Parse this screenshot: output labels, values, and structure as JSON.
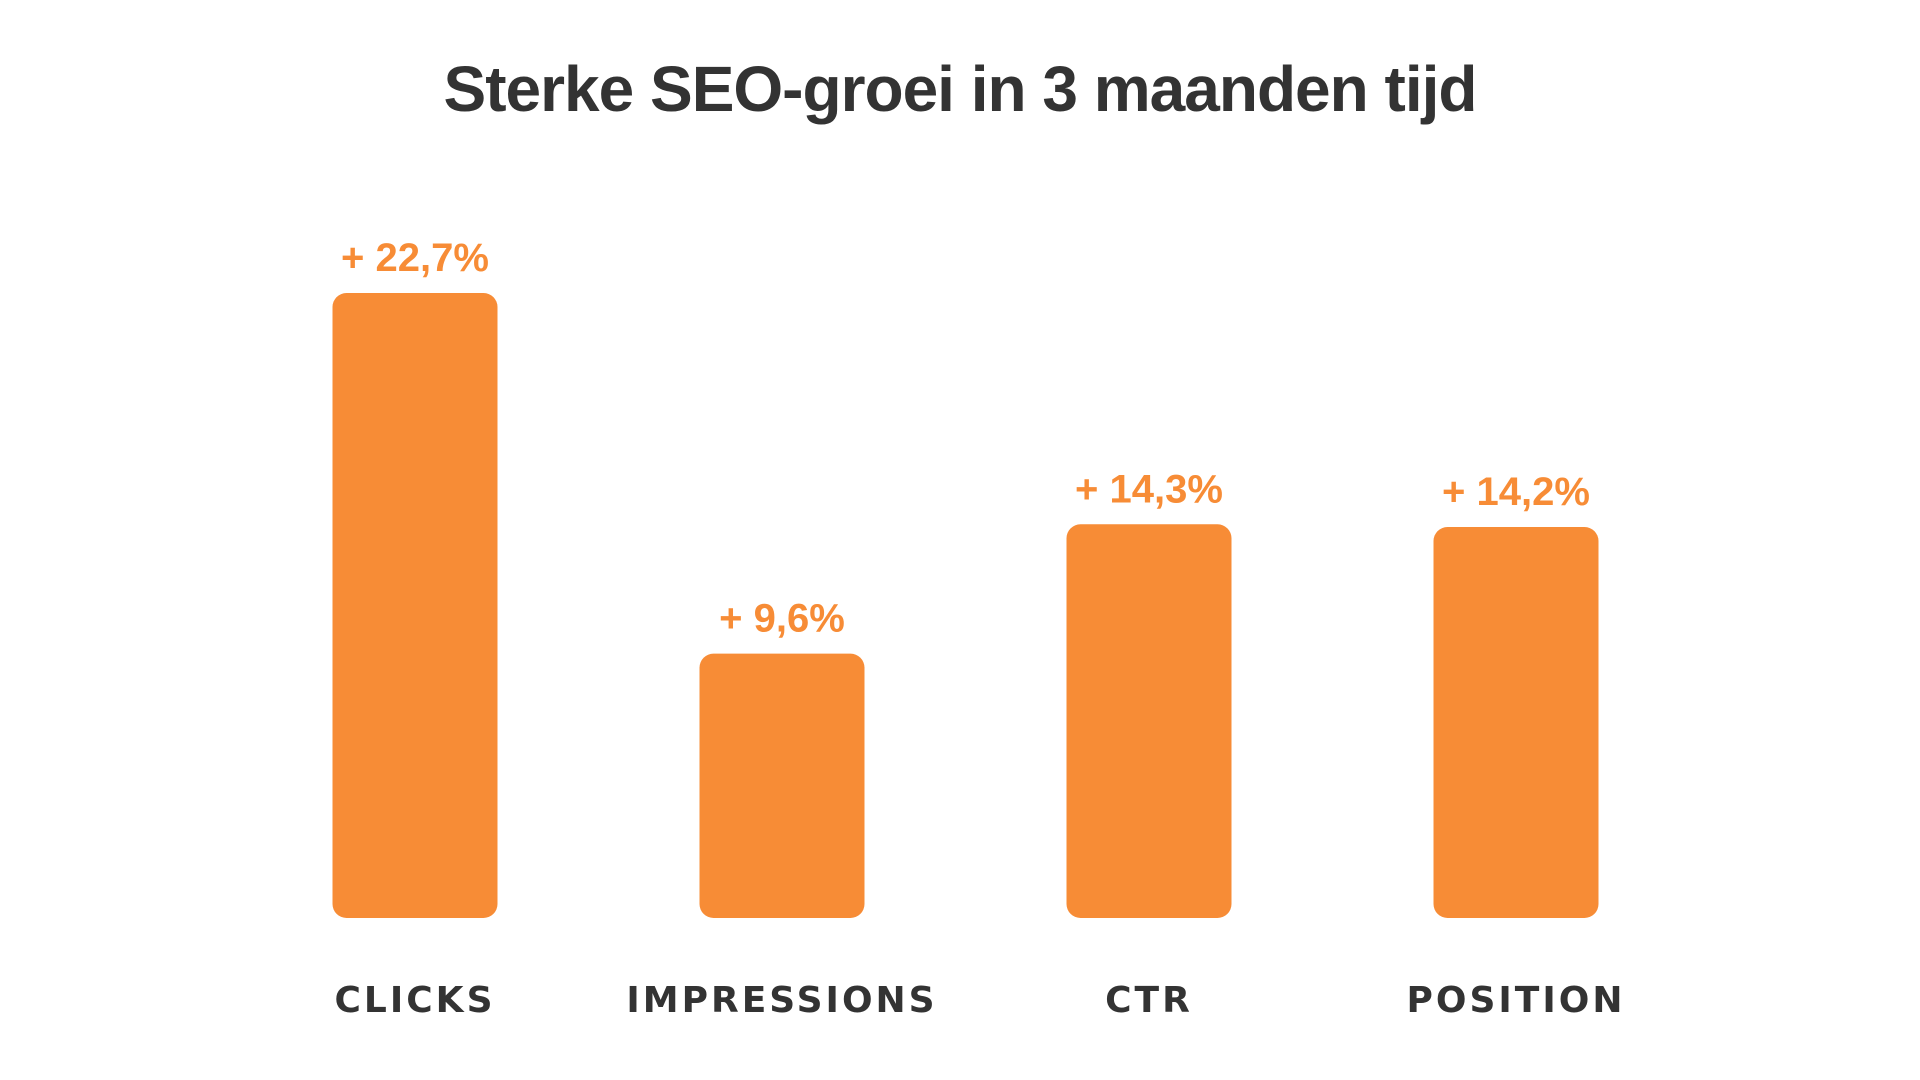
{
  "chart_data": {
    "type": "bar",
    "title": "Sterke SEO-groei in 3 maanden tijd",
    "categories": [
      "CLICKS",
      "IMPRESSIONS",
      "CTR",
      "POSITION"
    ],
    "values": [
      22.7,
      9.6,
      14.3,
      14.2
    ],
    "data_labels": [
      "+ 22,7%",
      "+ 9,6%",
      "+ 14,3%",
      "+ 14,2%"
    ],
    "xlabel": "",
    "ylabel": "",
    "ylim": [
      0,
      22.7
    ],
    "grid": false,
    "legend": "none",
    "colors": {
      "bar": "#F78C36",
      "value_text": "#F78C36",
      "label_text": "#333333",
      "title_text": "#333333"
    }
  }
}
